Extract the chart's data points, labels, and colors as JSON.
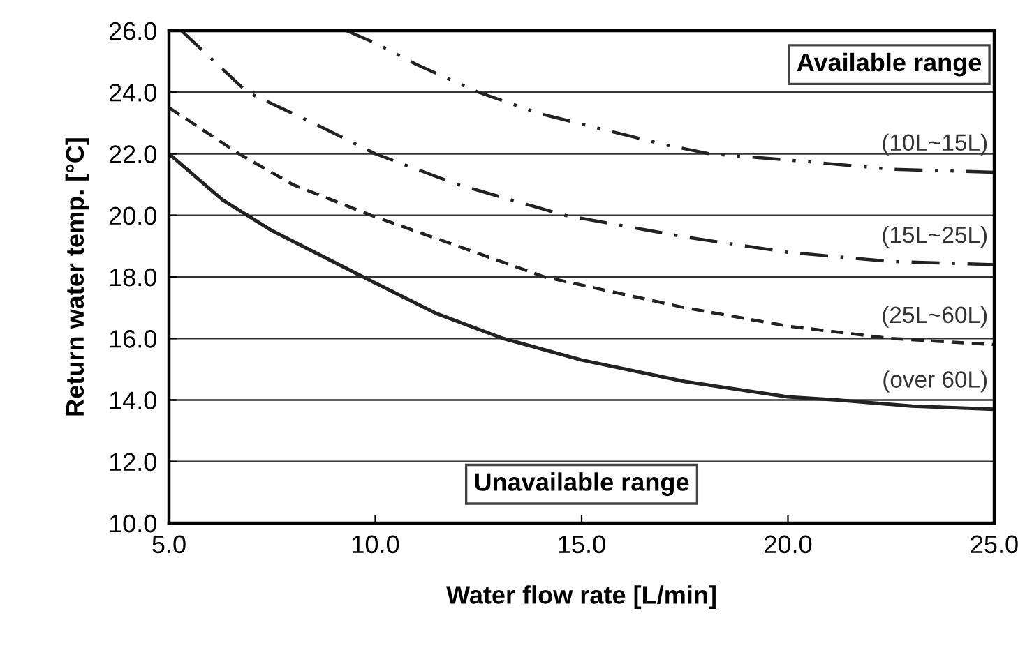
{
  "chart_data": {
    "type": "line",
    "xlabel": "Water flow rate [L/min]",
    "ylabel": "Return water temp. [°C]",
    "xlim": [
      5,
      25
    ],
    "ylim": [
      10,
      26
    ],
    "xticks": [
      {
        "value": 5,
        "label": "5.0"
      },
      {
        "value": 10,
        "label": "10.0"
      },
      {
        "value": 15,
        "label": "15.0"
      },
      {
        "value": 20,
        "label": "20.0"
      },
      {
        "value": 25,
        "label": "25.0"
      }
    ],
    "yticks": [
      {
        "value": 10,
        "label": "10.0"
      },
      {
        "value": 12,
        "label": "12.0"
      },
      {
        "value": 14,
        "label": "14.0"
      },
      {
        "value": 16,
        "label": "16.0"
      },
      {
        "value": 18,
        "label": "18.0"
      },
      {
        "value": 20,
        "label": "20.0"
      },
      {
        "value": 22,
        "label": "22.0"
      },
      {
        "value": 24,
        "label": "24.0"
      },
      {
        "value": 26,
        "label": "26.0"
      }
    ],
    "grid": "y",
    "legend": false,
    "marker": "none",
    "series": [
      {
        "name": "(10L~15L)",
        "color": "#222222",
        "line_style": "dashdotdot",
        "x": [
          9.3,
          10,
          11,
          12.5,
          14,
          15.5,
          17,
          18.1,
          20,
          22.5,
          25
        ],
        "values": [
          26,
          25.6,
          24.9,
          24,
          23.3,
          22.8,
          22.3,
          22,
          21.8,
          21.5,
          21.4
        ]
      },
      {
        "name": "(15L~25L)",
        "color": "#222222",
        "line_style": "dashdot",
        "x": [
          5.3,
          6.9,
          8.5,
          10,
          12,
          14.6,
          17.5,
          20,
          22.5,
          25
        ],
        "values": [
          26,
          24,
          23,
          22,
          21,
          20,
          19.3,
          18.8,
          18.5,
          18.4
        ]
      },
      {
        "name": "(25L~60L)",
        "color": "#222222",
        "line_style": "dashed",
        "x": [
          5,
          6.7,
          8,
          9.9,
          12,
          14.1,
          17.5,
          20,
          22.5,
          25
        ],
        "values": [
          23.5,
          22,
          21,
          20,
          19,
          18,
          17,
          16.4,
          16,
          15.8
        ]
      },
      {
        "name": "(over 60L)",
        "color": "#222222",
        "line_style": "solid",
        "x": [
          5,
          6.3,
          7.5,
          10,
          11.5,
          13.1,
          15,
          17.5,
          20,
          21.2,
          23,
          25
        ],
        "values": [
          22,
          20.5,
          19.5,
          17.8,
          16.8,
          16,
          15.3,
          14.6,
          14.1,
          14,
          13.8,
          13.7
        ]
      }
    ],
    "annotations": [
      "Available range",
      "Unavailable range"
    ]
  }
}
